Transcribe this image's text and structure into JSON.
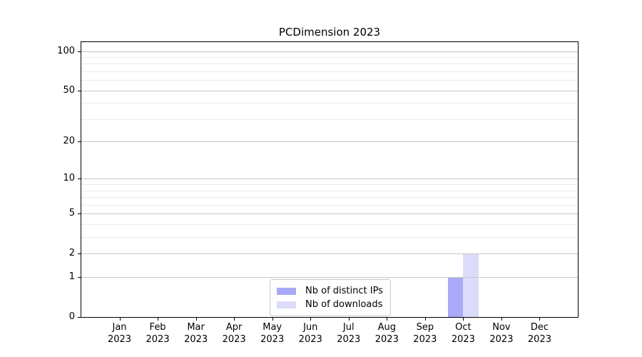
{
  "chart_data": {
    "type": "bar",
    "title": "PCDimension 2023",
    "categories": [
      "Jan 2023",
      "Feb 2023",
      "Mar 2023",
      "Apr 2023",
      "May 2023",
      "Jun 2023",
      "Jul 2023",
      "Aug 2023",
      "Sep 2023",
      "Oct 2023",
      "Nov 2023",
      "Dec 2023"
    ],
    "series": [
      {
        "name": "Nb of distinct IPs",
        "color": "#a9aaf7",
        "values": [
          0,
          0,
          0,
          0,
          0,
          0,
          0,
          0,
          0,
          1,
          0,
          0
        ]
      },
      {
        "name": "Nb of downloads",
        "color": "#dbdcf9",
        "values": [
          0,
          0,
          0,
          0,
          0,
          0,
          0,
          0,
          0,
          2,
          0,
          0
        ]
      }
    ],
    "xlabel": "",
    "ylabel": "",
    "yscale": "log1p",
    "ylim": [
      0,
      117
    ],
    "yticks": [
      0,
      1,
      2,
      5,
      10,
      20,
      50,
      100
    ],
    "y_minor_gridlines": [
      3,
      4,
      6,
      7,
      8,
      9,
      30,
      40,
      60,
      70,
      80,
      90
    ],
    "grid": true,
    "legend_position": "lower-center",
    "colors": {
      "major_grid": "#c6c6c6",
      "minor_grid": "#ebebeb",
      "spine": "#000000",
      "text": "#000000",
      "background": "#ffffff"
    }
  }
}
